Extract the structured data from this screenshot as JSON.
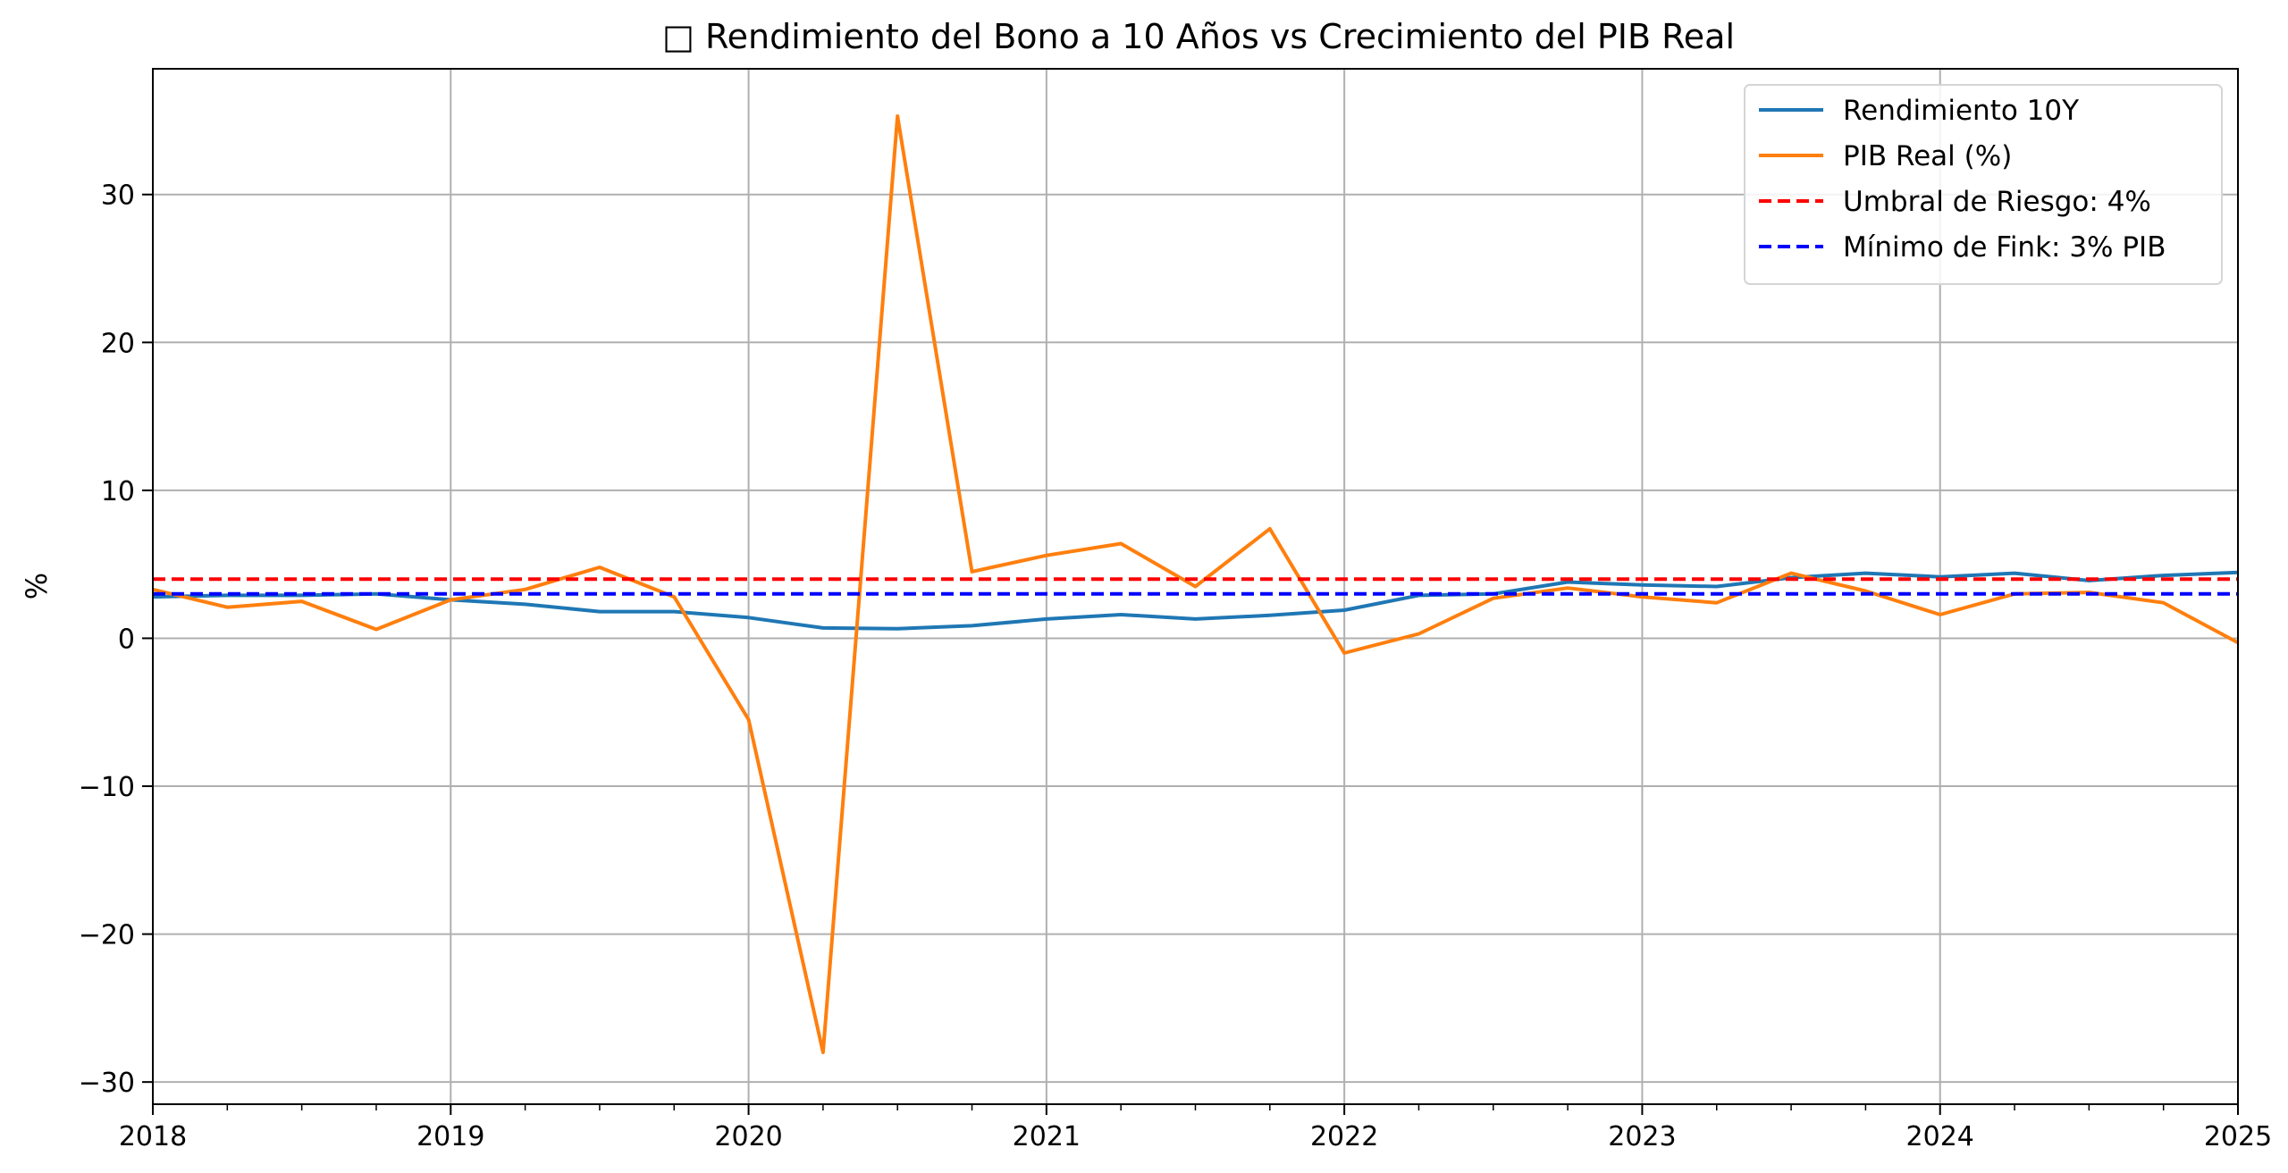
{
  "chart_data": {
    "type": "line",
    "title": "□ Rendimiento del Bono a 10 Años vs Crecimiento del PIB Real",
    "xlabel": "",
    "ylabel": "%",
    "xlim": [
      2018,
      2025
    ],
    "ylim": [
      -31.5,
      38.5
    ],
    "xticks": [
      2018,
      2019,
      2020,
      2021,
      2022,
      2023,
      2024,
      2025
    ],
    "xtick_labels": [
      "2018",
      "2019",
      "2020",
      "2021",
      "2022",
      "2023",
      "2024",
      "2025"
    ],
    "yticks": [
      -30,
      -20,
      -10,
      0,
      10,
      20,
      30
    ],
    "ytick_labels": [
      "−30",
      "−20",
      "−10",
      "0",
      "10",
      "20",
      "30"
    ],
    "grid": true,
    "legend_position": "upper-right",
    "series": [
      {
        "name": "Rendimiento 10Y",
        "color": "#1f77b4",
        "style": "solid",
        "x": [
          2018.0,
          2018.25,
          2018.5,
          2018.75,
          2019.0,
          2019.25,
          2019.5,
          2019.75,
          2020.0,
          2020.25,
          2020.5,
          2020.75,
          2021.0,
          2021.25,
          2021.5,
          2021.75,
          2022.0,
          2022.25,
          2022.5,
          2022.75,
          2023.0,
          2023.25,
          2023.5,
          2023.75,
          2024.0,
          2024.25,
          2024.5,
          2024.75,
          2025.0
        ],
        "y": [
          2.8,
          2.9,
          2.9,
          3.0,
          2.6,
          2.3,
          1.8,
          1.8,
          1.4,
          0.7,
          0.65,
          0.85,
          1.3,
          1.6,
          1.3,
          1.55,
          1.9,
          2.9,
          3.0,
          3.8,
          3.6,
          3.5,
          4.1,
          4.4,
          4.15,
          4.4,
          3.9,
          4.25,
          4.45
        ]
      },
      {
        "name": "PIB Real (%)",
        "color": "#ff7f0e",
        "style": "solid",
        "x": [
          2018.0,
          2018.25,
          2018.5,
          2018.75,
          2019.0,
          2019.25,
          2019.5,
          2019.75,
          2020.0,
          2020.25,
          2020.5,
          2020.75,
          2021.0,
          2021.25,
          2021.5,
          2021.75,
          2022.0,
          2022.25,
          2022.5,
          2022.75,
          2023.0,
          2023.25,
          2023.5,
          2023.75,
          2024.0,
          2024.25,
          2024.5,
          2024.75,
          2025.0
        ],
        "y": [
          3.3,
          2.1,
          2.5,
          0.6,
          2.6,
          3.3,
          4.8,
          2.8,
          -5.5,
          -28.0,
          35.3,
          4.5,
          5.6,
          6.4,
          3.5,
          7.4,
          -1.0,
          0.3,
          2.7,
          3.4,
          2.8,
          2.4,
          4.4,
          3.2,
          1.6,
          3.0,
          3.1,
          2.4,
          -0.3
        ]
      },
      {
        "name": "Umbral de Riesgo: 4%",
        "color": "#ff0000",
        "style": "dashed",
        "x": [
          2018.0,
          2025.0
        ],
        "y": [
          4.0,
          4.0
        ]
      },
      {
        "name": "Mínimo de Fink: 3% PIB",
        "color": "#0000ff",
        "style": "dashed",
        "x": [
          2018.0,
          2025.0
        ],
        "y": [
          3.0,
          3.0
        ]
      }
    ]
  }
}
